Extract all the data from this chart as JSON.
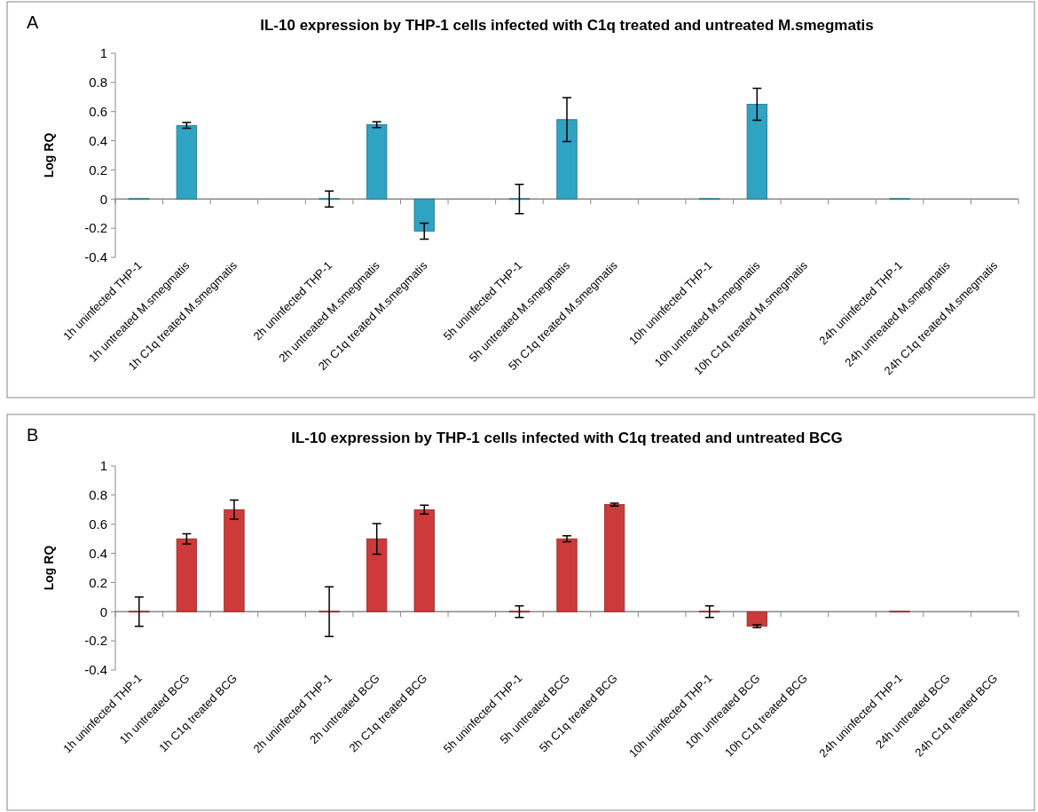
{
  "chart_data": [
    {
      "type": "bar",
      "title": "IL-10 expression by THP-1 cells infected with C1q treated and untreated M.smegmatis",
      "ylabel": "Log RQ",
      "annotations": [
        "A"
      ],
      "categories": [
        "1h uninfected THP-1",
        "1h untreated M.smegmatis",
        "1h C1q treated M.smegmatis",
        null,
        "2h uninfected THP-1",
        "2h untreated M.smegmatis",
        "2h C1q treated M.smegmatis",
        null,
        "5h uninfected THP-1",
        "5h untreated M.smegmatis",
        "5h C1q treated M.smegmatis",
        null,
        "10h uninfected THP-1",
        "10h untreated M.smegmatis",
        "10h C1q treated M.smegmatis",
        null,
        "24h uninfected THP-1",
        "24h untreated M.smegmatis",
        "24h C1q treated M.smegmatis"
      ],
      "series": [
        {
          "color": "#2fa3c2",
          "values": [
            0,
            0.505,
            null,
            null,
            0,
            0.51,
            -0.22,
            null,
            0,
            0.545,
            null,
            null,
            0,
            0.65,
            null,
            null,
            0,
            null,
            null
          ],
          "errors": [
            null,
            0.02,
            null,
            null,
            0.055,
            0.02,
            0.055,
            null,
            0.1,
            0.15,
            null,
            null,
            null,
            0.11,
            null,
            null,
            null,
            null,
            null
          ]
        }
      ],
      "ylim": [
        -0.4,
        1
      ],
      "yticks": [
        -0.4,
        -0.2,
        0,
        0.2,
        0.4,
        0.6,
        0.8,
        1
      ]
    },
    {
      "type": "bar",
      "title": "IL-10 expression by THP-1 cells infected with C1q treated and untreated BCG",
      "ylabel": "Log RQ",
      "annotations": [
        "B"
      ],
      "categories": [
        "1h uninfected THP-1",
        "1h untreated BCG",
        "1h C1q treated BCG",
        null,
        "2h uninfected THP-1",
        "2h untreated BCG",
        "2h C1q treated BCG",
        null,
        "5h uninfected THP-1",
        "5h untreated BCG",
        "5h C1q treated BCG",
        null,
        "10h uninfected THP-1",
        "10h untreated BCG",
        "10h C1q treated BCG",
        null,
        "24h uninfected THP-1",
        "24h untreated BCG",
        "24h C1q treated BCG"
      ],
      "series": [
        {
          "color": "#cc3a3a",
          "values": [
            0,
            0.5,
            0.7,
            null,
            0,
            0.5,
            0.7,
            null,
            0,
            0.5,
            0.735,
            null,
            0,
            -0.1,
            null,
            null,
            0,
            null,
            null
          ],
          "errors": [
            0.1,
            0.035,
            0.065,
            null,
            0.17,
            0.105,
            0.03,
            null,
            0.04,
            0.02,
            0.01,
            null,
            0.04,
            0.01,
            null,
            null,
            null,
            null,
            null
          ]
        }
      ],
      "ylim": [
        -0.4,
        1
      ],
      "yticks": [
        -0.4,
        -0.2,
        0,
        0.2,
        0.4,
        0.6,
        0.8,
        1
      ]
    }
  ]
}
